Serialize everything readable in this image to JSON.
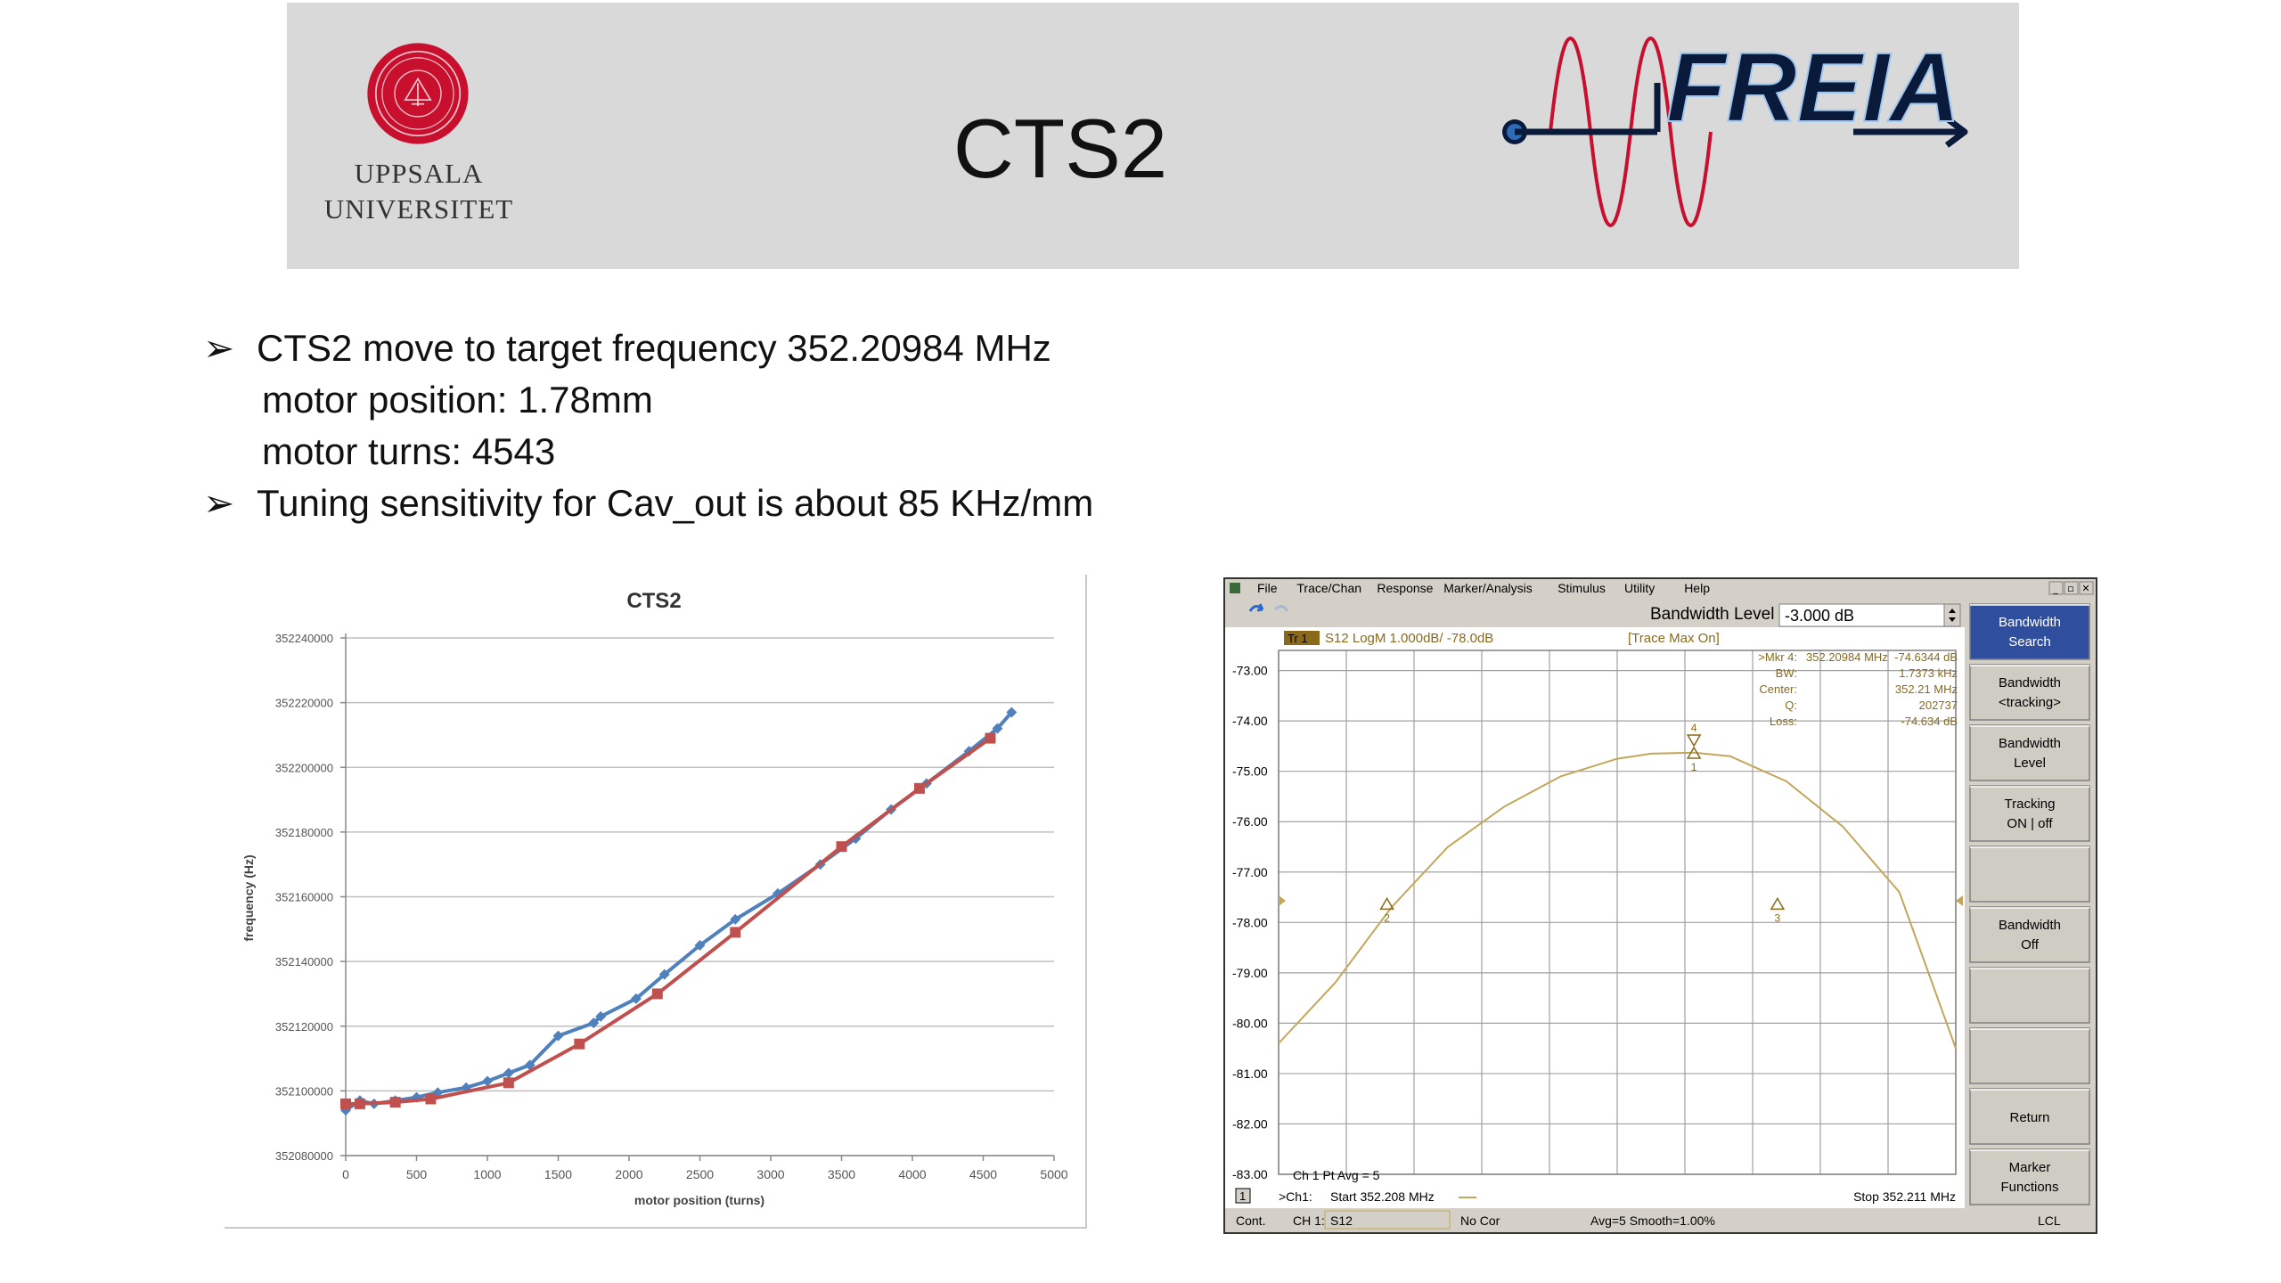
{
  "banner": {
    "university_line1": "UPPSALA",
    "university_line2": "UNIVERSITET",
    "title": "CTS2",
    "logo_text": "FREIA"
  },
  "bullets": [
    {
      "text": "CTS2 move to target frequency 352.20984 MHz"
    },
    {
      "text": "motor position: 1.78mm",
      "indent": true
    },
    {
      "text": "motor turns: 4543",
      "indent": true
    },
    {
      "text": "Tuning sensitivity for Cav_out is about 85 KHz/mm"
    }
  ],
  "bullet_symbol": "➢",
  "chart_data": [
    {
      "type": "line",
      "title": "CTS2",
      "xlabel": "motor position (turns)",
      "ylabel": "frequency (Hz)",
      "xlim": [
        0,
        5000
      ],
      "ylim": [
        352080000,
        352240000
      ],
      "xticks": [
        "0",
        "500",
        "1000",
        "1500",
        "2000",
        "2500",
        "3000",
        "3500",
        "4000",
        "4500",
        "5000"
      ],
      "yticks": [
        "352080000",
        "352100000",
        "352120000",
        "352140000",
        "352160000",
        "352180000",
        "352200000",
        "352220000",
        "352240000"
      ],
      "grid": true,
      "series": [
        {
          "color": "#4f81bd",
          "x": [
            0,
            100,
            200,
            350,
            500,
            650,
            850,
            1000,
            1150,
            1300,
            1500,
            1750,
            1800,
            2050,
            2250,
            2500,
            2750,
            3050,
            3350,
            3600,
            3850,
            4100,
            4400,
            4600,
            4700
          ],
          "y": [
            352094000,
            352097000,
            352096000,
            352097000,
            352098000,
            352099500,
            352101000,
            352103000,
            352105500,
            352108000,
            352117000,
            352121000,
            352123000,
            352128500,
            352136000,
            352145000,
            352153000,
            352161000,
            352170000,
            352178000,
            352187000,
            352195000,
            352205000,
            352212000,
            352217000
          ]
        },
        {
          "color": "#c0504d",
          "x": [
            0,
            100,
            350,
            600,
            1150,
            1650,
            2200,
            2750,
            3500,
            4050,
            4550
          ],
          "y": [
            352096000,
            352096000,
            352096500,
            352097500,
            352102500,
            352114500,
            352130000,
            352149000,
            352175500,
            352193500,
            352209000
          ]
        }
      ]
    },
    {
      "type": "line",
      "title": "S12 LogM 1.000dB/ -78.0dB",
      "ylim": [
        -83.0,
        -72.6
      ],
      "ytick_labels": [
        "-73.00",
        "-74.00",
        "-75.00",
        "-76.00",
        "-77.00",
        "-78.00",
        "-79.00",
        "-80.00",
        "-81.00",
        "-82.00",
        "-83.00"
      ],
      "x_start_label": "Start  352.208 MHz",
      "x_stop_label": "Stop  352.211 MHz",
      "grid": true,
      "series": [
        {
          "name": "S12",
          "color": "#c2a65a",
          "x": [
            352.208,
            352.20825,
            352.2085,
            352.20875,
            352.209,
            352.20925,
            352.2095,
            352.20965,
            352.20984,
            352.21,
            352.21025,
            352.2105,
            352.21075,
            352.211
          ],
          "y": [
            -80.4,
            -79.2,
            -77.7,
            -76.5,
            -75.7,
            -75.1,
            -74.75,
            -74.65,
            -74.63,
            -74.7,
            -75.2,
            -76.1,
            -77.4,
            -80.5
          ]
        }
      ],
      "markers": [
        {
          "id": "1",
          "x": 352.20984,
          "y": -74.634
        },
        {
          "id": "2",
          "x": 352.20848,
          "y": -77.63
        },
        {
          "id": "3",
          "x": 352.21021,
          "y": -77.63
        },
        {
          "id": "4",
          "x": 352.20984,
          "y": -74.634
        }
      ]
    }
  ],
  "vna": {
    "menu": [
      "File",
      "Trace/Chan",
      "Response",
      "Marker/Analysis",
      "Stimulus",
      "Utility",
      "Help"
    ],
    "window_controls": [
      "_",
      "▫",
      "✕"
    ],
    "bw_level_label": "Bandwidth Level",
    "bw_level_value": "-3.000 dB",
    "trace_tag": "Tr 1",
    "trace_max": "[Trace Max On]",
    "marker_readout": [
      {
        "label": ">Mkr 4:",
        "value": "352.20984 MHz",
        "value2": "-74.6344 dB"
      },
      {
        "label": "BW:",
        "value": "",
        "value2": "1.7373 kHz"
      },
      {
        "label": "Center:",
        "value": "",
        "value2": "352.21 MHz"
      },
      {
        "label": "Q:",
        "value": "",
        "value2": "202737"
      },
      {
        "label": "Loss:",
        "value": "",
        "value2": "-74.634 dB"
      }
    ],
    "avg_label": "Ch 1 Pt Avg = 5",
    "channel_num": "1",
    "ch_label": ">Ch1:",
    "softkeys": [
      {
        "line1": "Bandwidth",
        "line2": "Search",
        "active": true
      },
      {
        "line1": "Bandwidth",
        "line2": "<tracking>",
        "active": false
      },
      {
        "line1": "Bandwidth",
        "line2": "Level",
        "active": false
      },
      {
        "line1": "Tracking",
        "line2": "ON | off",
        "active": false
      },
      {
        "line1": "",
        "line2": "",
        "active": false
      },
      {
        "line1": "Bandwidth",
        "line2": "Off",
        "active": false
      },
      {
        "line1": "",
        "line2": "",
        "active": false
      },
      {
        "line1": "",
        "line2": "",
        "active": false
      },
      {
        "line1": "Return",
        "line2": "",
        "active": false
      },
      {
        "line1": "Marker",
        "line2": "Functions",
        "active": false
      }
    ],
    "status": [
      "Cont.",
      "CH 1:",
      "S12",
      "No Cor",
      "Avg=5 Smooth=1.00%",
      "LCL"
    ]
  },
  "colors": {
    "banner_bg": "#d9d9d9",
    "uu_red": "#c8102e",
    "vna_grid_bg": "#ffffff",
    "vna_trace": "#c2a65a",
    "softkey_active": "#2f4f9e"
  }
}
